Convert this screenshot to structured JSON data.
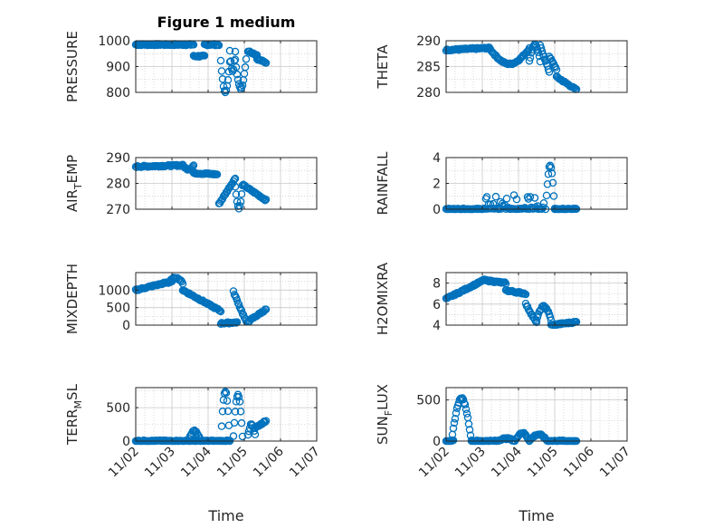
{
  "title": "Figure 1 medium",
  "colors": {
    "marker": "#0072BD",
    "axis": "#262626",
    "grid": "#c8c8c8"
  },
  "chart_data": [
    {
      "type": "scatter",
      "ylabel": "PRESSURE",
      "ylabel_sub": null,
      "ylabel_rest": null,
      "ylim": [
        800,
        1000
      ],
      "yticks": [
        800,
        900,
        1000
      ],
      "ytick_labels": [
        "800",
        "900",
        "1000"
      ],
      "minor_y": [
        850,
        950
      ],
      "shapes": [
        [
          "flat",
          0.0,
          1.6,
          985,
          985
        ],
        [
          "flat",
          1.6,
          1.9,
          940,
          940
        ],
        [
          "flat",
          1.9,
          2.3,
          985,
          985
        ],
        [
          "dip",
          2.35,
          2.6,
          920,
          800
        ],
        [
          "dip",
          2.6,
          2.75,
          960,
          880
        ],
        [
          "dip",
          2.75,
          3.05,
          930,
          815
        ],
        [
          "flat",
          3.1,
          3.35,
          960,
          945
        ],
        [
          "flat",
          3.35,
          3.6,
          930,
          915
        ]
      ]
    },
    {
      "type": "scatter",
      "ylabel": "THETA",
      "ylabel_sub": null,
      "ylabel_rest": null,
      "ylim": [
        280,
        290
      ],
      "yticks": [
        280,
        285,
        290
      ],
      "ytick_labels": [
        "280",
        "285",
        "290"
      ],
      "minor_y": [
        282.5,
        287.5
      ],
      "shapes": [
        [
          "flat",
          0.0,
          1.2,
          288.2,
          288.6
        ],
        [
          "hump",
          1.2,
          2.3,
          288.5,
          285.5
        ],
        [
          "dip",
          2.3,
          2.6,
          286.0,
          289.3
        ],
        [
          "ramp",
          2.6,
          2.85,
          289.0,
          284.0
        ],
        [
          "ramp",
          2.85,
          3.05,
          287.0,
          284.5
        ],
        [
          "ramp",
          3.05,
          3.6,
          283.0,
          280.5
        ]
      ]
    },
    {
      "type": "scatter",
      "ylabel": "AIR",
      "ylabel_sub": "T",
      "ylabel_rest": "EMP",
      "ylim": [
        270,
        290
      ],
      "yticks": [
        270,
        280,
        290
      ],
      "ytick_labels": [
        "270",
        "280",
        "290"
      ],
      "minor_y": [
        275,
        285
      ],
      "shapes": [
        [
          "flat",
          0.0,
          1.3,
          286.5,
          287.0
        ],
        [
          "hump",
          1.3,
          1.6,
          287.0,
          285.5
        ],
        [
          "flat",
          1.6,
          2.25,
          284.0,
          283.5
        ],
        [
          "ramp",
          2.3,
          2.75,
          272.0,
          282.0
        ],
        [
          "dip",
          2.75,
          2.95,
          279.0,
          270.5
        ],
        [
          "ramp",
          2.95,
          3.6,
          279.5,
          273.5
        ]
      ]
    },
    {
      "type": "scatter",
      "ylabel": "RAINFALL",
      "ylabel_sub": null,
      "ylabel_rest": null,
      "ylim": [
        0,
        4
      ],
      "yticks": [
        0,
        2,
        4
      ],
      "ytick_labels": [
        "0",
        "2",
        "4"
      ],
      "minor_y": [
        1,
        3
      ],
      "shapes": [
        [
          "flat",
          0.0,
          1.0,
          0.0,
          0.0
        ],
        [
          "noise",
          1.0,
          2.7,
          0.0,
          1.2
        ],
        [
          "spike",
          2.75,
          3.0,
          0.0,
          3.4
        ],
        [
          "flat",
          3.0,
          3.6,
          0.0,
          0.0
        ]
      ]
    },
    {
      "type": "scatter",
      "ylabel": "MIXDEPTH",
      "ylabel_sub": null,
      "ylabel_rest": null,
      "ylim": [
        0,
        1500
      ],
      "yticks": [
        0,
        500,
        1000
      ],
      "ytick_labels": [
        "0",
        "500",
        "1000"
      ],
      "minor_y": [
        250,
        750,
        1250
      ],
      "shapes": [
        [
          "ramp",
          0.0,
          1.0,
          1000,
          1250
        ],
        [
          "hump",
          0.9,
          1.3,
          1200,
          1350
        ],
        [
          "ramp",
          1.3,
          2.35,
          1000,
          400
        ],
        [
          "flat",
          2.35,
          2.8,
          50,
          80
        ],
        [
          "ramp",
          2.7,
          3.05,
          950,
          100
        ],
        [
          "ramp",
          3.1,
          3.6,
          100,
          450
        ]
      ]
    },
    {
      "type": "scatter",
      "ylabel": "H2OMIXRA",
      "ylabel_sub": null,
      "ylabel_rest": null,
      "ylim": [
        4,
        9
      ],
      "yticks": [
        4,
        6,
        8
      ],
      "ytick_labels": [
        "4",
        "6",
        "8"
      ],
      "minor_y": [
        5,
        7
      ],
      "shapes": [
        [
          "ramp",
          0.0,
          1.0,
          6.5,
          8.2
        ],
        [
          "flat",
          1.0,
          1.65,
          8.3,
          8.0
        ],
        [
          "flat",
          1.65,
          2.2,
          7.3,
          7.0
        ],
        [
          "ramp",
          2.2,
          2.5,
          6.0,
          4.2
        ],
        [
          "hump",
          2.5,
          2.9,
          4.5,
          5.8
        ],
        [
          "ramp",
          2.9,
          3.6,
          4.0,
          4.3
        ]
      ]
    },
    {
      "type": "scatter",
      "ylabel": "TERR",
      "ylabel_sub": "M",
      "ylabel_rest": "SL",
      "ylim": [
        0,
        800
      ],
      "yticks": [
        0,
        500
      ],
      "ytick_labels": [
        "0",
        "500"
      ],
      "minor_y": [
        250,
        750
      ],
      "shapes": [
        [
          "flat",
          0.0,
          2.6,
          0.0,
          0.0
        ],
        [
          "hump",
          1.45,
          1.8,
          0.0,
          150
        ],
        [
          "hump",
          2.35,
          2.6,
          0.0,
          750
        ],
        [
          "hump",
          2.7,
          2.95,
          80,
          700
        ],
        [
          "hump",
          3.1,
          3.3,
          100,
          250
        ],
        [
          "ramp",
          3.3,
          3.6,
          200,
          300
        ]
      ]
    },
    {
      "type": "scatter",
      "ylabel": "SUN",
      "ylabel_sub": "F",
      "ylabel_rest": "LUX",
      "ylim": [
        0,
        650
      ],
      "yticks": [
        0,
        500
      ],
      "ytick_labels": [
        "0",
        "500"
      ],
      "minor_y": [
        250
      ],
      "shapes": [
        [
          "flat",
          0.0,
          0.2,
          0.0,
          0.0
        ],
        [
          "hump",
          0.15,
          0.7,
          0.0,
          520
        ],
        [
          "flat",
          0.7,
          1.4,
          0.0,
          0.0
        ],
        [
          "hump",
          1.4,
          1.9,
          0.0,
          30
        ],
        [
          "hump",
          1.9,
          2.3,
          0.0,
          100
        ],
        [
          "hump",
          2.3,
          2.8,
          0.0,
          80
        ],
        [
          "flat",
          2.8,
          3.6,
          0.0,
          0.0
        ]
      ]
    }
  ],
  "xaxis": {
    "label": "Time",
    "xlim": [
      0,
      5
    ],
    "ticks": [
      0,
      1,
      2,
      3,
      4,
      5
    ],
    "tick_labels": [
      "11/02",
      "11/03",
      "11/04",
      "11/05",
      "11/06",
      "11/07"
    ]
  }
}
